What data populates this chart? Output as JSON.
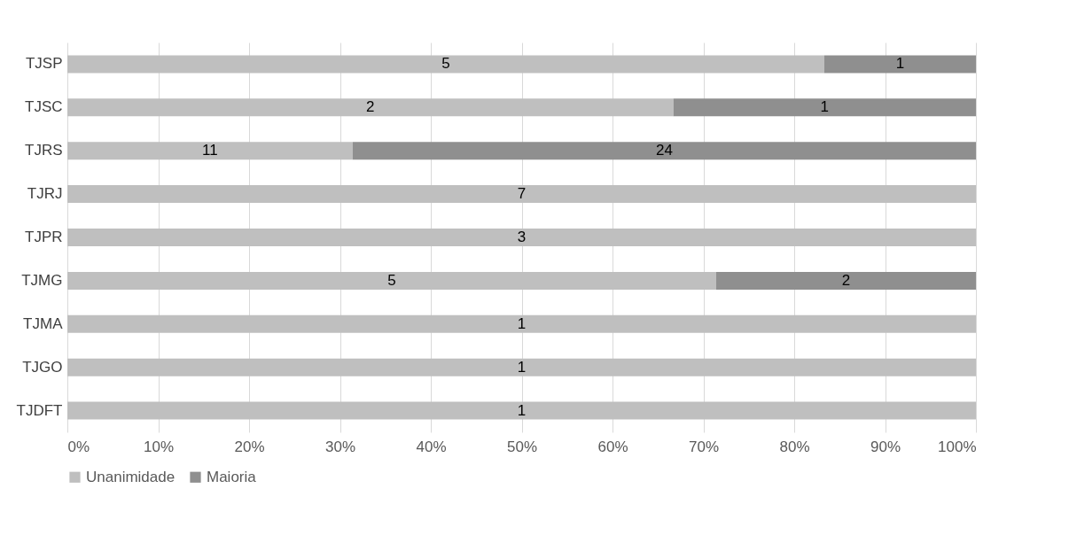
{
  "chart_data": {
    "type": "bar",
    "orientation": "horizontal",
    "stacked": true,
    "categories": [
      "TJSP",
      "TJSC",
      "TJRS",
      "TJRJ",
      "TJPR",
      "TJMG",
      "TJMA",
      "TJGO",
      "TJDFT"
    ],
    "series": [
      {
        "name": "Unanimidade",
        "color": "#bfbfbf",
        "values": [
          83.3,
          66.7,
          31.4,
          100,
          100,
          71.4,
          100,
          100,
          100
        ]
      },
      {
        "name": "Maioria",
        "color": "#8f8f8f",
        "values": [
          16.7,
          33.3,
          68.6,
          null,
          null,
          28.6,
          null,
          null,
          null
        ]
      }
    ],
    "annotations": [
      "5",
      "1",
      "2",
      "1",
      "11",
      "24",
      "7",
      "3",
      "5",
      "2",
      "1",
      "1",
      "1"
    ],
    "xlim": [
      0,
      100
    ],
    "xticks": [
      {
        "value": 0,
        "label": "0%"
      },
      {
        "value": 10,
        "label": "10%"
      },
      {
        "value": 20,
        "label": "20%"
      },
      {
        "value": 30,
        "label": "30%"
      },
      {
        "value": 40,
        "label": "40%"
      },
      {
        "value": 50,
        "label": "50%"
      },
      {
        "value": 60,
        "label": "60%"
      },
      {
        "value": 70,
        "label": "70%"
      },
      {
        "value": 80,
        "label": "80%"
      },
      {
        "value": 90,
        "label": "90%"
      },
      {
        "value": 100,
        "label": "100%"
      }
    ],
    "grid": "x",
    "legend": "bottom"
  }
}
